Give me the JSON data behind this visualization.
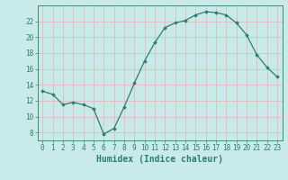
{
  "x": [
    0,
    1,
    2,
    3,
    4,
    5,
    6,
    7,
    8,
    9,
    10,
    11,
    12,
    13,
    14,
    15,
    16,
    17,
    18,
    19,
    20,
    21,
    22,
    23
  ],
  "y": [
    13.2,
    12.8,
    11.5,
    11.8,
    11.5,
    11.0,
    7.8,
    8.5,
    11.2,
    14.2,
    17.0,
    19.3,
    21.2,
    21.8,
    22.1,
    22.8,
    23.2,
    23.1,
    22.8,
    21.8,
    20.3,
    17.8,
    16.2,
    15.0
  ],
  "line_color": "#2e7d6e",
  "marker_color": "#2e7d6e",
  "bg_color": "#c8eae8",
  "grid_color": "#e8b8b8",
  "axis_color": "#2e7d6e",
  "xlabel": "Humidex (Indice chaleur)",
  "ylim": [
    7,
    24
  ],
  "xlim": [
    -0.5,
    23.5
  ],
  "yticks": [
    8,
    10,
    12,
    14,
    16,
    18,
    20,
    22
  ],
  "xticks": [
    0,
    1,
    2,
    3,
    4,
    5,
    6,
    7,
    8,
    9,
    10,
    11,
    12,
    13,
    14,
    15,
    16,
    17,
    18,
    19,
    20,
    21,
    22,
    23
  ],
  "xtick_labels": [
    "0",
    "1",
    "2",
    "3",
    "4",
    "5",
    "6",
    "7",
    "8",
    "9",
    "10",
    "11",
    "12",
    "13",
    "14",
    "15",
    "16",
    "17",
    "18",
    "19",
    "20",
    "21",
    "22",
    "23"
  ],
  "tick_fontsize": 5.5,
  "label_fontsize": 7.0
}
